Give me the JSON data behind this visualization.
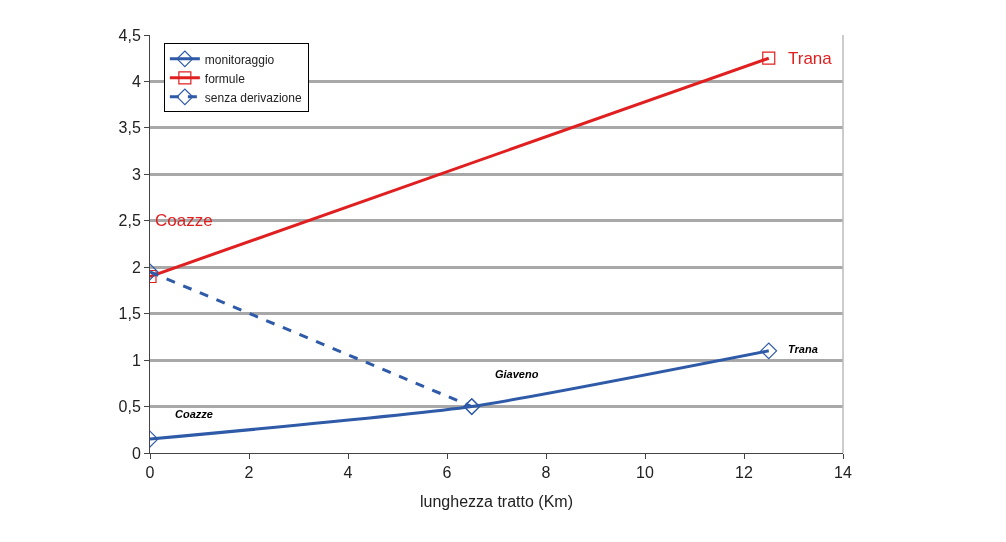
{
  "chart_data": {
    "type": "line",
    "xlabel": "lunghezza tratto (Km)",
    "series": [
      {
        "name": "monitoraggio",
        "color": "#2e5aa8",
        "x": [
          0,
          6.5,
          12.5
        ],
        "values": [
          0.15,
          0.5,
          1.1
        ],
        "marker": "diamond",
        "line_style": "solid"
      },
      {
        "name": "formule",
        "color": "#e02020",
        "x": [
          0,
          12.5
        ],
        "values": [
          1.9,
          4.25
        ],
        "marker": "square",
        "line_style": "solid"
      },
      {
        "name": "senza derivazione",
        "color": "#2e5aa8",
        "x": [
          0,
          6.5
        ],
        "values": [
          1.95,
          0.5
        ],
        "marker": "diamond",
        "line_style": "dashed"
      }
    ],
    "annotations": [
      "Coazze",
      "Trana",
      "Coazze",
      "Giaveno",
      "Trana"
    ],
    "xlim": [
      0,
      14
    ],
    "xticks": [
      0,
      2,
      4,
      6,
      8,
      10,
      12,
      14
    ],
    "ylim": [
      0,
      4.5
    ],
    "yticks": [
      0,
      {
        "value": 0.5,
        "label": "0,5"
      },
      1,
      {
        "value": 1.5,
        "label": "1,5"
      },
      2,
      {
        "value": 2.5,
        "label": "2,5"
      },
      3,
      {
        "value": 3.5,
        "label": "3,5"
      },
      4,
      {
        "value": 4.5,
        "label": "4,5"
      }
    ],
    "grid": "y",
    "legend": "top left"
  }
}
